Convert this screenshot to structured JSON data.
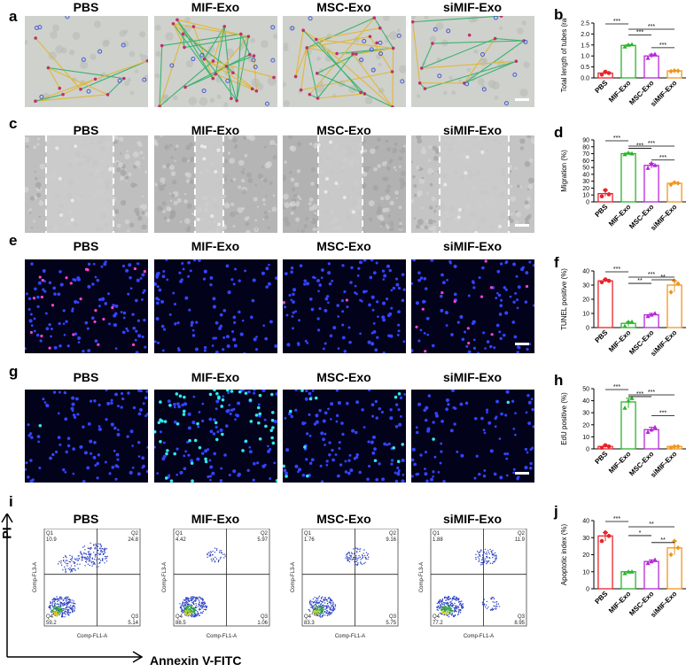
{
  "panel_letters": [
    "a",
    "b",
    "c",
    "d",
    "e",
    "f",
    "g",
    "h",
    "i",
    "j"
  ],
  "groups": [
    "PBS",
    "MIF-Exo",
    "MSC-Exo",
    "siMIF-Exo"
  ],
  "colors": {
    "PBS": "#e8242b",
    "MIF-Exo": "#2ab52a",
    "MSC-Exo": "#b428d8",
    "siMIF-Exo": "#f0961e"
  },
  "flow": {
    "y_axis_label": "PI",
    "x_axis_label": "Annexin V-FITC",
    "y_channel": "Comp-FL3-A",
    "x_channel": "Comp-FL1-A",
    "plots": [
      {
        "q1": "10.9",
        "q2": "24.8",
        "q3": "5.14",
        "q4": "59.2"
      },
      {
        "q1": "4.42",
        "q2": "5.97",
        "q3": "1.06",
        "q4": "88.5"
      },
      {
        "q1": "1.76",
        "q2": "9.16",
        "q3": "5.75",
        "q4": "83.3"
      },
      {
        "q1": "1.88",
        "q2": "11.9",
        "q3": "8.95",
        "q4": "77.2"
      }
    ]
  },
  "chart_data": [
    {
      "panel": "b",
      "type": "bar",
      "categories": [
        "PBS",
        "MIF-Exo",
        "MSC-Exo",
        "siMIF-Exo"
      ],
      "values": [
        0.22,
        1.48,
        1.0,
        0.32
      ],
      "ylabel": "Total length of tubes (ratio)",
      "ylim": [
        0,
        2.5
      ],
      "yticks": [
        "0.0",
        "0.5",
        "1.0",
        "1.5",
        "2.0",
        "2.5"
      ],
      "points": [
        [
          0.15,
          0.28,
          0.22
        ],
        [
          1.42,
          1.5,
          1.52
        ],
        [
          0.9,
          1.05,
          1.08
        ],
        [
          0.3,
          0.33,
          0.32
        ]
      ],
      "sig": [
        {
          "from": 0,
          "to": 1,
          "label": "***"
        },
        {
          "from": 1,
          "to": 3,
          "label": "***"
        },
        {
          "from": 1,
          "to": 2,
          "label": "***"
        },
        {
          "from": 2,
          "to": 3,
          "label": "***"
        }
      ]
    },
    {
      "panel": "d",
      "type": "bar",
      "categories": [
        "PBS",
        "MIF-Exo",
        "MSC-Exo",
        "siMIF-Exo"
      ],
      "values": [
        12,
        70,
        53,
        27
      ],
      "ylabel": "Migration (%)",
      "ylim": [
        0,
        90
      ],
      "yticks": [
        "0",
        "10",
        "20",
        "30",
        "40",
        "50",
        "60",
        "70",
        "80",
        "90"
      ],
      "points": [
        [
          8,
          17,
          11
        ],
        [
          69,
          71,
          70
        ],
        [
          49,
          56,
          53
        ],
        [
          25,
          28,
          27
        ]
      ],
      "sig": [
        {
          "from": 0,
          "to": 1,
          "label": "***"
        },
        {
          "from": 1,
          "to": 3,
          "label": "***"
        },
        {
          "from": 1,
          "to": 2,
          "label": "***"
        },
        {
          "from": 2,
          "to": 3,
          "label": "***"
        }
      ]
    },
    {
      "panel": "f",
      "type": "bar",
      "categories": [
        "PBS",
        "MIF-Exo",
        "MSC-Exo",
        "siMIF-Exo"
      ],
      "values": [
        33,
        3,
        9,
        30
      ],
      "ylabel": "TUNEL positive (%)",
      "ylim": [
        0,
        40
      ],
      "yticks": [
        "0",
        "10",
        "20",
        "30",
        "40"
      ],
      "points": [
        [
          32,
          34,
          33
        ],
        [
          1,
          4,
          4
        ],
        [
          8,
          9,
          10
        ],
        [
          25,
          33,
          31
        ]
      ],
      "sig": [
        {
          "from": 0,
          "to": 1,
          "label": "***"
        },
        {
          "from": 1,
          "to": 3,
          "label": "***"
        },
        {
          "from": 1,
          "to": 2,
          "label": "**"
        },
        {
          "from": 2,
          "to": 3,
          "label": "**"
        }
      ]
    },
    {
      "panel": "h",
      "type": "bar",
      "categories": [
        "PBS",
        "MIF-Exo",
        "MSC-Exo",
        "siMIF-Exo"
      ],
      "values": [
        2,
        39,
        16,
        2
      ],
      "ylabel": "EdU positive (%)",
      "ylim": [
        0,
        50
      ],
      "yticks": [
        "0",
        "10",
        "20",
        "30",
        "40",
        "50"
      ],
      "points": [
        [
          1,
          3,
          2
        ],
        [
          34,
          40,
          42
        ],
        [
          14,
          16,
          18
        ],
        [
          1,
          2,
          2
        ]
      ],
      "sig": [
        {
          "from": 0,
          "to": 1,
          "label": "***"
        },
        {
          "from": 1,
          "to": 3,
          "label": "***"
        },
        {
          "from": 1,
          "to": 2,
          "label": "***"
        },
        {
          "from": 2,
          "to": 3,
          "label": "***"
        }
      ]
    },
    {
      "panel": "j",
      "type": "bar",
      "categories": [
        "PBS",
        "MIF-Exo",
        "MSC-Exo",
        "siMIF-Exo"
      ],
      "values": [
        31,
        10,
        16,
        24
      ],
      "ylabel": "Apoptotic index (%)",
      "ylim": [
        0,
        40
      ],
      "yticks": [
        "0",
        "10",
        "20",
        "30",
        "40"
      ],
      "points": [
        [
          28,
          33,
          31
        ],
        [
          9,
          10,
          10
        ],
        [
          15,
          16,
          17
        ],
        [
          20,
          28,
          24
        ]
      ],
      "sig": [
        {
          "from": 0,
          "to": 1,
          "label": "***"
        },
        {
          "from": 1,
          "to": 3,
          "label": "**"
        },
        {
          "from": 1,
          "to": 2,
          "label": "*"
        },
        {
          "from": 2,
          "to": 3,
          "label": "**"
        }
      ]
    }
  ]
}
